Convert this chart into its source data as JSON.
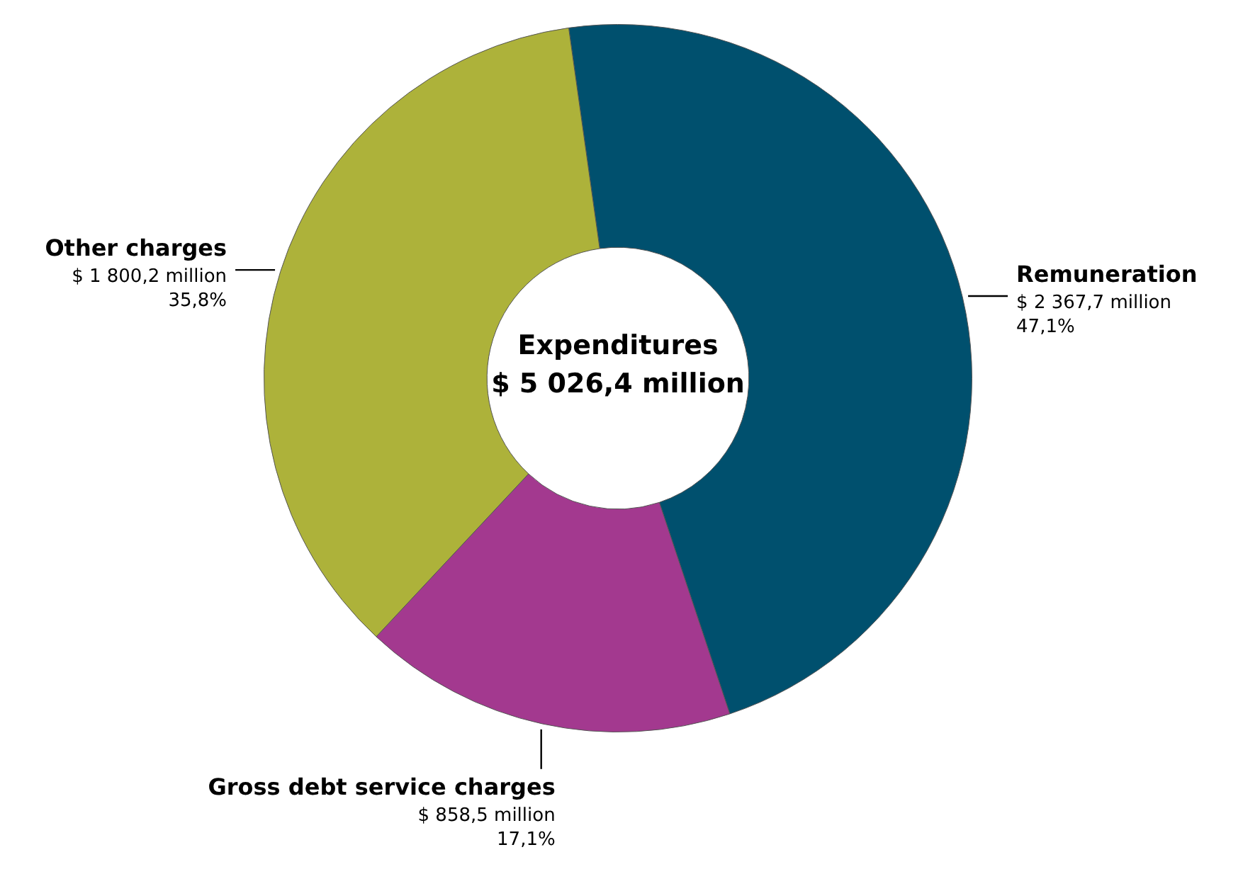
{
  "chart_data": {
    "type": "donut",
    "title": "Expenditures",
    "subtitle": "$ 5 026,4 million",
    "categories": [
      "Remuneration",
      "Gross debt service charges",
      "Other charges"
    ],
    "values": [
      2367.7,
      858.5,
      1800.2
    ],
    "colors": [
      "#00506e",
      "#a3398f",
      "#adb23a"
    ],
    "value_labels": [
      "$ 2 367,7 million",
      "$ 858,5 million",
      "$ 1 800,2 million"
    ],
    "annotations": [
      "47,1%",
      "17,1%",
      "35,8%"
    ]
  }
}
